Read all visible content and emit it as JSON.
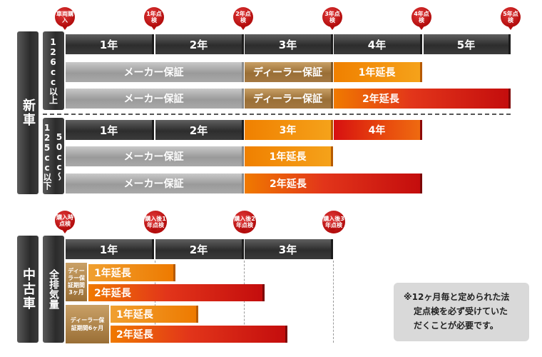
{
  "new_car": {
    "section_label": "新車",
    "pins": [
      "車両購入",
      "1年点検",
      "2年点検",
      "3年点検",
      "4年点検",
      "5年点検"
    ],
    "years": [
      "1年",
      "2年",
      "3年",
      "4年",
      "5年"
    ],
    "group_126": {
      "label": "126cc以上",
      "row1": {
        "maker": "メーカー保証",
        "dealer": "ディーラー保証",
        "ext": "1年延長"
      },
      "row2": {
        "maker": "メーカー保証",
        "dealer": "ディーラー保証",
        "ext": "2年延長"
      }
    },
    "group_50": {
      "label": "50cc〜125cc以下",
      "years": [
        "1年",
        "2年",
        "3年",
        "4年"
      ],
      "row1": {
        "maker": "メーカー保証",
        "ext": "1年延長"
      },
      "row2": {
        "maker": "メーカー保証",
        "ext": "2年延長"
      }
    }
  },
  "used_car": {
    "section_label": "中古車",
    "all_displacement": "全排気量",
    "pins": [
      "購入時点検",
      "購入後1年点検",
      "購入後2年点検",
      "購入後3年点検"
    ],
    "years": [
      "1年",
      "2年",
      "3年"
    ],
    "dealer_3m": "ディーラー保証期間3ヶ月",
    "dealer_6m": "ディーラー保証期間6ヶ月",
    "rows": [
      "1年延長",
      "2年延長",
      "1年延長",
      "2年延長"
    ]
  },
  "note": {
    "line1": "※12ヶ月毎と定められた法",
    "line2": "定点検を必ず受けていた",
    "line3": "だくことが必要です。"
  }
}
